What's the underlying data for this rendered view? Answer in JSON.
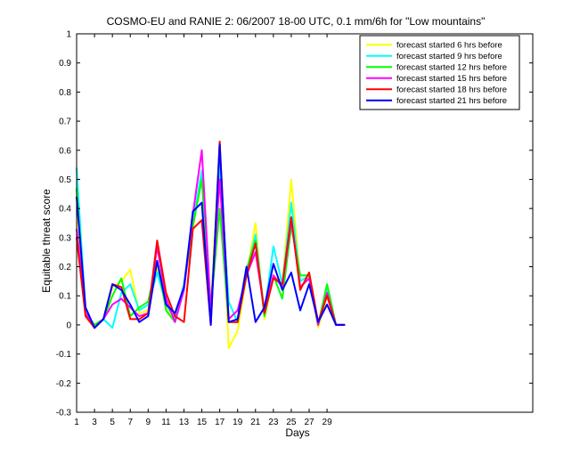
{
  "chart_data": {
    "type": "line",
    "title": "COSMO-EU and RANIE 2: 06/2007 18-00 UTC, 0.1 mm/6h for \"Low mountains\"",
    "xlabel": "Days",
    "ylabel": "Equitable threat score",
    "xlim": [
      1,
      52
    ],
    "ylim": [
      -0.3,
      1
    ],
    "xticks": [
      1,
      3,
      5,
      7,
      9,
      11,
      13,
      15,
      17,
      19,
      21,
      23,
      25,
      27,
      29
    ],
    "yticks": [
      -0.3,
      -0.2,
      -0.1,
      0,
      0.1,
      0.2,
      0.3,
      0.4,
      0.5,
      0.6,
      0.7,
      0.8,
      0.9,
      1
    ],
    "ytick_labels": [
      "-0.3",
      "-0.2",
      "-0.1",
      "0",
      "0.1",
      "0.2",
      "0.3",
      "0.4",
      "0.5",
      "0.6",
      "0.7",
      "0.8",
      "0.9",
      "1"
    ],
    "grid": false,
    "legend_position": "top-right",
    "x": [
      1,
      2,
      3,
      4,
      5,
      6,
      7,
      8,
      9,
      10,
      11,
      12,
      13,
      14,
      15,
      16,
      17,
      18,
      19,
      20,
      21,
      22,
      23,
      24,
      25,
      26,
      27,
      28,
      29,
      30,
      31
    ],
    "series": [
      {
        "name": "forecast started 6 hrs before",
        "color": "#ffff00",
        "values": [
          0.41,
          0.05,
          -0.01,
          0.02,
          0.13,
          0.15,
          0.19,
          0.04,
          0.05,
          0.2,
          0.06,
          0.02,
          0.14,
          0.33,
          0.52,
          0.07,
          0.62,
          -0.08,
          -0.02,
          0.17,
          0.35,
          0.02,
          0.17,
          0.14,
          0.5,
          0.15,
          0.17,
          -0.01,
          0.1,
          0.0,
          0.0
        ]
      },
      {
        "name": "forecast started 9 hrs before",
        "color": "#00ffff",
        "values": [
          0.54,
          0.05,
          -0.01,
          0.02,
          -0.01,
          0.11,
          0.14,
          0.05,
          0.07,
          0.18,
          0.07,
          0.02,
          0.14,
          0.35,
          0.53,
          0.05,
          0.56,
          0.08,
          0.01,
          0.18,
          0.31,
          0.04,
          0.27,
          0.14,
          0.42,
          0.15,
          0.17,
          0.0,
          0.12,
          0.0,
          0.0
        ]
      },
      {
        "name": "forecast started 12 hrs before",
        "color": "#00ff00",
        "values": [
          0.47,
          0.04,
          0.0,
          0.02,
          0.1,
          0.16,
          0.03,
          0.06,
          0.08,
          0.22,
          0.05,
          0.01,
          0.13,
          0.34,
          0.5,
          0.06,
          0.4,
          0.01,
          0.01,
          0.19,
          0.29,
          0.03,
          0.17,
          0.09,
          0.34,
          0.17,
          0.17,
          0.0,
          0.14,
          0.0,
          0.0
        ]
      },
      {
        "name": "forecast started 15 hrs before",
        "color": "#ff00ff",
        "values": [
          0.33,
          0.04,
          -0.01,
          0.02,
          0.07,
          0.09,
          0.06,
          0.03,
          0.04,
          0.27,
          0.09,
          0.01,
          0.12,
          0.38,
          0.6,
          0.05,
          0.5,
          0.02,
          0.05,
          0.17,
          0.25,
          0.05,
          0.17,
          0.13,
          0.36,
          0.13,
          0.16,
          0.0,
          0.11,
          0.0,
          0.0
        ]
      },
      {
        "name": "forecast started 18 hrs before",
        "color": "#ff0000",
        "values": [
          0.3,
          0.03,
          -0.01,
          0.02,
          0.14,
          0.13,
          0.02,
          0.02,
          0.04,
          0.29,
          0.11,
          0.03,
          0.01,
          0.33,
          0.36,
          0.0,
          0.63,
          0.01,
          0.01,
          0.17,
          0.28,
          0.04,
          0.16,
          0.14,
          0.37,
          0.12,
          0.18,
          0.01,
          0.1,
          0.0,
          0.0
        ]
      },
      {
        "name": "forecast started 21 hrs before",
        "color": "#0000ff",
        "values": [
          0.44,
          0.06,
          -0.01,
          0.02,
          0.14,
          0.12,
          0.07,
          0.01,
          0.03,
          0.22,
          0.07,
          0.04,
          0.13,
          0.39,
          0.42,
          0.0,
          0.62,
          0.01,
          0.02,
          0.2,
          0.01,
          0.06,
          0.21,
          0.12,
          0.18,
          0.05,
          0.14,
          0.01,
          0.07,
          0.0,
          0.0
        ]
      }
    ]
  }
}
